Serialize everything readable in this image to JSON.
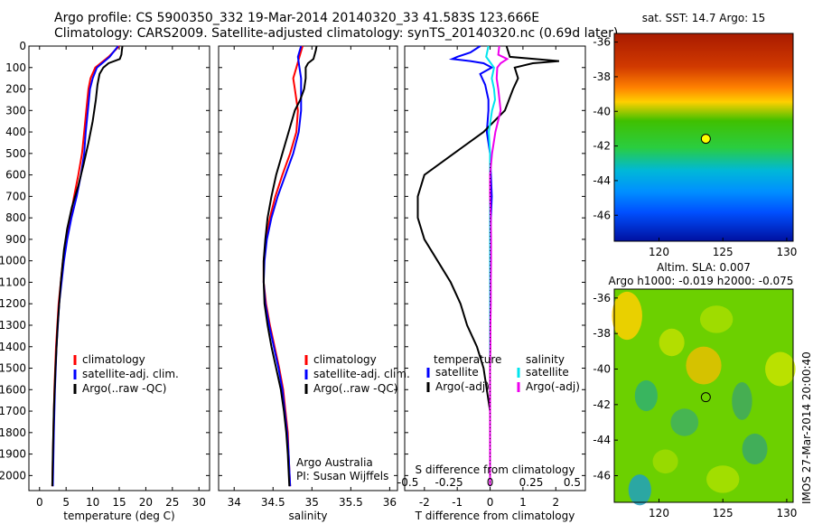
{
  "header": {
    "line1": "Argo profile: CS 5900350_332 19-Mar-2014 20140320_33 41.583S 123.666E",
    "line2": "Climatology: CARS2009. Satellite-adjusted climatology: synTS_20140320.nc (0.69d later)"
  },
  "colors": {
    "climatology": "#ff0000",
    "satellite": "#0000ff",
    "argo": "#000000",
    "salinity_satellite": "#00e5ee",
    "salinity_argo": "#ee00ee"
  },
  "credits": {
    "line1": "Argo Australia",
    "line2": "PI: Susan Wijffels",
    "vertical_stamp": "IMOS 27-Mar-2014 20:00:40"
  },
  "chart_data": [
    {
      "type": "line",
      "id": "temperature",
      "xlabel": "temperature (deg C)",
      "xlim": [
        -2,
        32
      ],
      "xticks": [
        0,
        5,
        10,
        15,
        20,
        25,
        30
      ],
      "ylim": [
        0,
        2070
      ],
      "yticks": [
        0,
        100,
        200,
        300,
        400,
        500,
        600,
        700,
        800,
        900,
        1000,
        1100,
        1200,
        1300,
        1400,
        1500,
        1600,
        1700,
        1800,
        1900,
        2000
      ],
      "legend": [
        "climatology",
        "satellite-adj. clim.",
        "Argo(..raw -QC)"
      ],
      "series": [
        {
          "name": "climatology",
          "color": "#ff0000",
          "depth": [
            0,
            50,
            100,
            150,
            200,
            300,
            400,
            500,
            600,
            700,
            800,
            900,
            1000,
            1200,
            1400,
            1600,
            1800,
            2050
          ],
          "values": [
            15.0,
            13.0,
            10.5,
            9.6,
            9.2,
            8.8,
            8.4,
            8.0,
            7.3,
            6.5,
            5.8,
            5.0,
            4.4,
            3.6,
            3.1,
            2.8,
            2.6,
            2.4
          ]
        },
        {
          "name": "satellite-adj. clim.",
          "color": "#0000ff",
          "depth": [
            0,
            50,
            100,
            150,
            200,
            300,
            400,
            500,
            600,
            700,
            800,
            900,
            1000,
            1200,
            1400,
            1600,
            1800,
            2050
          ],
          "values": [
            14.8,
            13.2,
            10.8,
            10.0,
            9.5,
            9.1,
            8.7,
            8.4,
            7.8,
            7.0,
            6.0,
            5.2,
            4.6,
            3.7,
            3.2,
            2.9,
            2.7,
            2.5
          ]
        },
        {
          "name": "Argo(..raw -QC)",
          "color": "#000000",
          "depth": [
            0,
            20,
            40,
            60,
            80,
            100,
            130,
            180,
            250,
            350,
            450,
            550,
            650,
            750,
            850,
            950,
            1100,
            1300,
            1500,
            1700,
            1900,
            2050
          ],
          "values": [
            15.6,
            15.5,
            15.4,
            15.1,
            13.0,
            12.0,
            11.3,
            10.9,
            10.6,
            10.0,
            9.2,
            8.3,
            7.3,
            6.1,
            5.2,
            4.6,
            4.0,
            3.4,
            3.0,
            2.7,
            2.5,
            2.4
          ]
        }
      ]
    },
    {
      "type": "line",
      "id": "salinity",
      "xlabel": "salinity",
      "xlim": [
        33.8,
        36.1
      ],
      "xticks": [
        34,
        34.5,
        35,
        35.5,
        36
      ],
      "ylim": [
        0,
        2070
      ],
      "legend": [
        "climatology",
        "satellite-adj. clim.",
        "Argo(..raw -QC)"
      ],
      "series": [
        {
          "name": "climatology",
          "color": "#ff0000",
          "depth": [
            0,
            50,
            100,
            150,
            200,
            300,
            400,
            500,
            600,
            700,
            800,
            900,
            1000,
            1100,
            1200,
            1300,
            1400,
            1500,
            1600,
            1700,
            1800,
            1900,
            2050
          ],
          "values": [
            34.88,
            34.84,
            34.8,
            34.76,
            34.78,
            34.82,
            34.8,
            34.72,
            34.62,
            34.53,
            34.46,
            34.41,
            34.38,
            34.38,
            34.41,
            34.46,
            34.52,
            34.58,
            34.63,
            34.66,
            34.69,
            34.7,
            34.72
          ]
        },
        {
          "name": "satellite-adj. clim.",
          "color": "#0000ff",
          "depth": [
            0,
            50,
            100,
            150,
            200,
            300,
            400,
            500,
            600,
            700,
            800,
            900,
            1000,
            1100,
            1200,
            1300,
            1400,
            1500,
            1600,
            1700,
            1800,
            1900,
            2050
          ],
          "values": [
            34.86,
            34.82,
            34.84,
            34.86,
            34.86,
            34.86,
            34.83,
            34.76,
            34.66,
            34.56,
            34.48,
            34.42,
            34.39,
            34.38,
            34.4,
            34.45,
            34.51,
            34.57,
            34.62,
            34.65,
            34.68,
            34.7,
            34.72
          ]
        },
        {
          "name": "Argo(..raw -QC)",
          "color": "#000000",
          "depth": [
            0,
            20,
            60,
            80,
            100,
            150,
            200,
            250,
            300,
            400,
            500,
            600,
            700,
            800,
            900,
            1000,
            1100,
            1200,
            1300,
            1400,
            1500,
            1600,
            1700,
            1800,
            1900,
            2050
          ],
          "values": [
            35.06,
            35.05,
            35.02,
            34.95,
            34.92,
            34.92,
            34.9,
            34.85,
            34.78,
            34.7,
            34.62,
            34.54,
            34.48,
            34.43,
            34.4,
            34.38,
            34.38,
            34.39,
            34.43,
            34.48,
            34.54,
            34.6,
            34.64,
            34.67,
            34.69,
            34.71
          ]
        }
      ]
    },
    {
      "type": "line",
      "id": "differences",
      "xlabel": "T difference from climatology",
      "xlabel2": "S difference from climatology",
      "xlim": [
        -2.6,
        2.9
      ],
      "xticks": [
        -2,
        -1,
        0,
        1,
        2
      ],
      "s_ticks": [
        -0.5,
        -0.25,
        0,
        0.25,
        0.5
      ],
      "ylim": [
        0,
        2070
      ],
      "legend_headers": [
        "temperature",
        "salinity"
      ],
      "legend": [
        "satellite",
        "Argo(-adj)",
        "satellite",
        "Argo(-adj)"
      ],
      "series": [
        {
          "name": "satellite",
          "group": "temperature",
          "color": "#0000ff",
          "depth": [
            0,
            30,
            50,
            60,
            70,
            80,
            100,
            130,
            180,
            250,
            300,
            400,
            500,
            700,
            900,
            1200,
            1500,
            2050
          ],
          "values": [
            -0.3,
            -0.6,
            -1.0,
            -1.15,
            -0.6,
            -0.2,
            0.05,
            -0.3,
            -0.15,
            -0.05,
            -0.05,
            -0.1,
            0.0,
            0.05,
            0.0,
            0.0,
            0.0,
            0.0
          ]
        },
        {
          "name": "Argo(-adj)",
          "group": "temperature",
          "color": "#000000",
          "depth": [
            0,
            50,
            70,
            80,
            100,
            150,
            200,
            300,
            400,
            500,
            600,
            700,
            800,
            900,
            1000,
            1100,
            1200,
            1300,
            1400,
            1500,
            1600,
            1700,
            1800,
            1900,
            2050
          ],
          "values": [
            0.5,
            0.6,
            2.1,
            1.3,
            0.75,
            0.85,
            0.7,
            0.45,
            -0.2,
            -1.1,
            -2.0,
            -2.2,
            -2.2,
            -2.0,
            -1.6,
            -1.2,
            -0.9,
            -0.7,
            -0.4,
            -0.2,
            -0.1,
            0.0,
            0.0,
            0.0,
            0.0
          ]
        },
        {
          "name": "satellite",
          "group": "salinity",
          "color": "#00e5ee",
          "depth": [
            0,
            50,
            100,
            150,
            200,
            250,
            300,
            400,
            500,
            700,
            900,
            1100,
            1300,
            1500,
            1700,
            1900,
            2050
          ],
          "values": [
            -0.05,
            -0.12,
            0.12,
            0.05,
            0.12,
            0.15,
            0.06,
            -0.04,
            0.0,
            0.0,
            0.0,
            0.0,
            0.0,
            0.0,
            0.0,
            0.0,
            0.0
          ]
        },
        {
          "name": "Argo(-adj)",
          "group": "salinity",
          "color": "#ee00ee",
          "depth": [
            0,
            40,
            60,
            80,
            100,
            150,
            200,
            300,
            400,
            500,
            600,
            700,
            800,
            900,
            1000,
            1100,
            1200,
            1300,
            1400,
            1500,
            1600,
            1700,
            1800,
            1900,
            2050
          ],
          "values": [
            0.28,
            0.25,
            0.52,
            0.32,
            0.22,
            0.2,
            0.25,
            0.32,
            0.16,
            0.06,
            0.0,
            0.0,
            0.02,
            0.03,
            0.03,
            0.02,
            0.02,
            0.01,
            0.01,
            0.0,
            0.0,
            0.0,
            0.0,
            0.0,
            0.0
          ]
        }
      ]
    },
    {
      "type": "heatmap",
      "id": "sst_map",
      "title": "sat. SST: 14.7  Argo: 15",
      "xlim": [
        116.5,
        130.5
      ],
      "ylim": [
        -47.5,
        -35.5
      ],
      "xticks": [
        120,
        125,
        130
      ],
      "yticks": [
        -36,
        -38,
        -40,
        -42,
        -44,
        -46
      ],
      "marker": {
        "lon": 123.666,
        "lat": -41.583,
        "fill": "#ffff00"
      }
    },
    {
      "type": "heatmap",
      "id": "sla_map",
      "title": "Altim. SLA: 0.007",
      "subtitle": "Argo h1000: -0.019  h2000: -0.075",
      "xlim": [
        116.5,
        130.5
      ],
      "ylim": [
        -47.5,
        -35.5
      ],
      "xticks": [
        120,
        125,
        130
      ],
      "yticks": [
        -36,
        -38,
        -40,
        -42,
        -44,
        -46
      ],
      "marker": {
        "lon": 123.666,
        "lat": -41.583,
        "fill": "none"
      }
    }
  ]
}
